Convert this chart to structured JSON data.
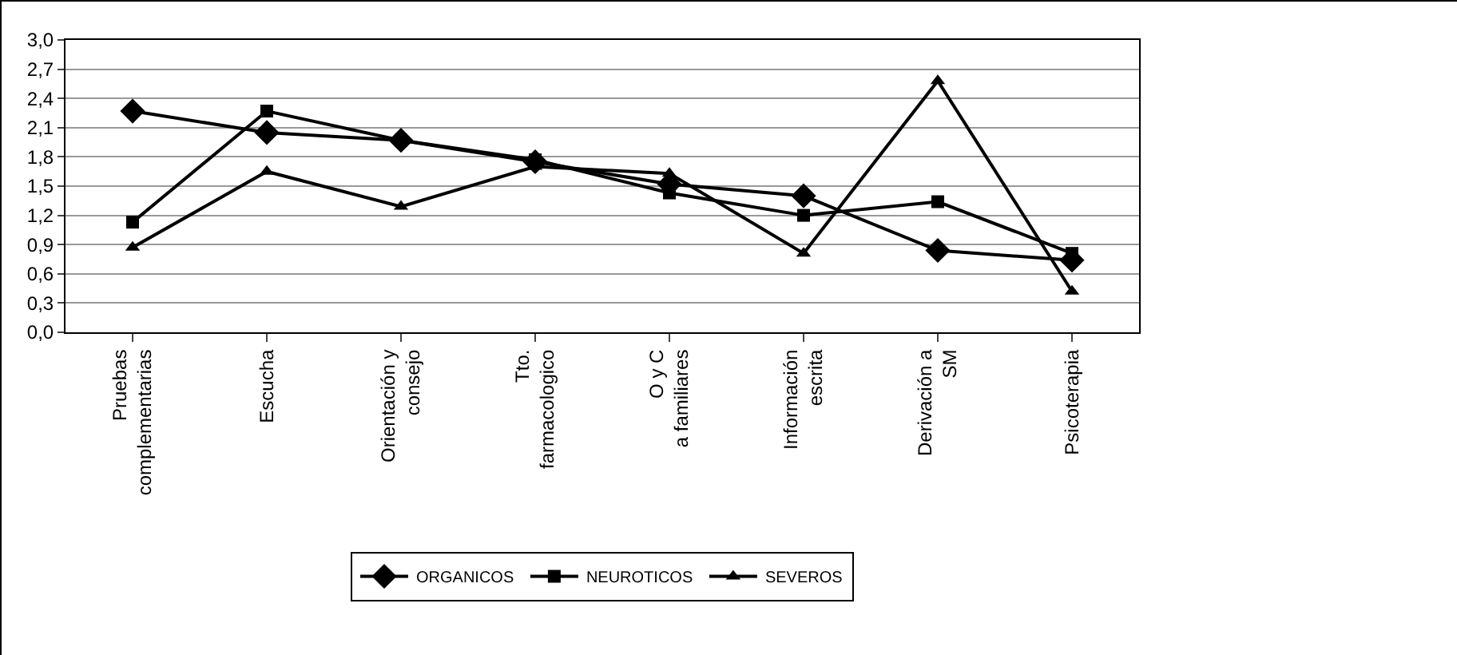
{
  "chart_data": {
    "type": "line",
    "categories": [
      "Pruebas complementarias",
      "Escucha",
      "Orientación y consejo",
      "Tto. farmacologico",
      "O y C a familiares",
      "Información escrita",
      "Derivación a SM",
      "Psicoterapia"
    ],
    "series": [
      {
        "name": "ORGANICOS",
        "color": "#000000",
        "marker": "diamond",
        "values": [
          2.27,
          2.05,
          1.97,
          1.75,
          1.52,
          1.4,
          0.84,
          0.74
        ]
      },
      {
        "name": "NEUROTICOS",
        "color": "#000000",
        "marker": "square",
        "values": [
          1.13,
          2.27,
          1.97,
          1.77,
          1.43,
          1.2,
          1.34,
          0.81
        ]
      },
      {
        "name": "SEVEROS",
        "color": "#000000",
        "marker": "triangle",
        "values": [
          0.87,
          1.65,
          1.29,
          1.7,
          1.63,
          0.81,
          2.58,
          0.42
        ]
      }
    ],
    "ylim": [
      0,
      3
    ],
    "yticks": [
      {
        "value": 0,
        "label": "0,0"
      },
      {
        "value": 0.3,
        "label": "0,3"
      },
      {
        "value": 0.6,
        "label": "0,6"
      },
      {
        "value": 0.9,
        "label": "0,9"
      },
      {
        "value": 1.2,
        "label": "1,2"
      },
      {
        "value": 1.5,
        "label": "1,5"
      },
      {
        "value": 1.8,
        "label": "1,8"
      },
      {
        "value": 2.1,
        "label": "2,1"
      },
      {
        "value": 2.4,
        "label": "2,4"
      },
      {
        "value": 2.7,
        "label": "2,7"
      },
      {
        "value": 3,
        "label": "3,0"
      }
    ],
    "grid": "y",
    "legend": "bottom",
    "line_style": "solid"
  }
}
